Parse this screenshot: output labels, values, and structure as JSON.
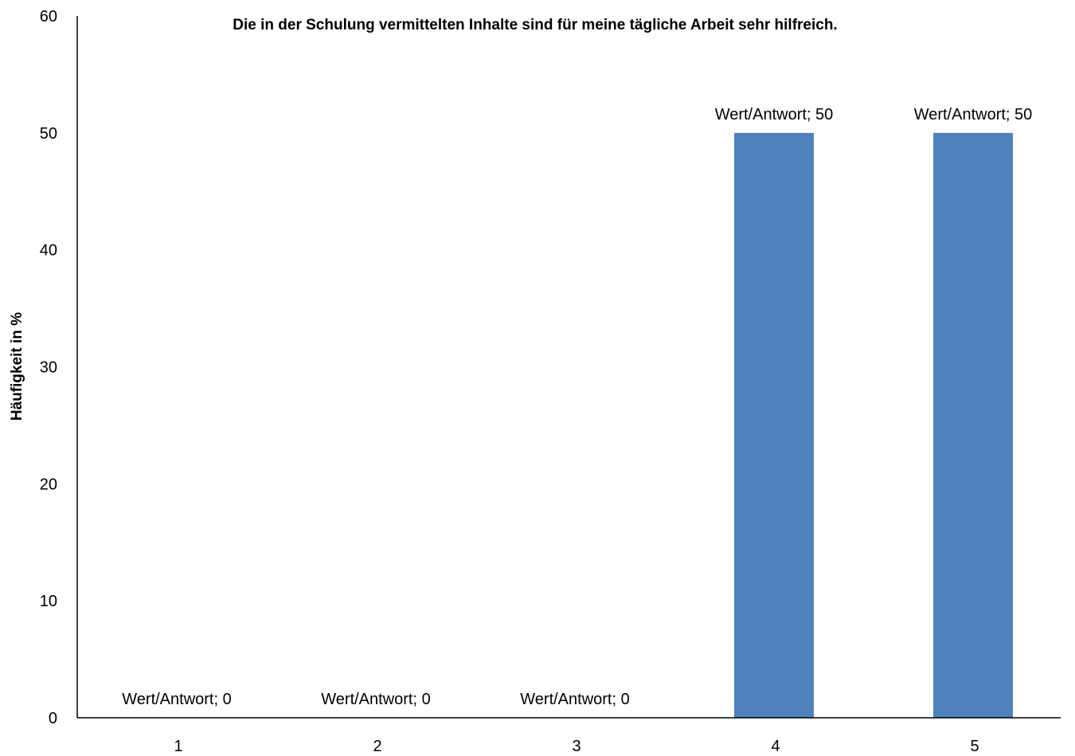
{
  "chart_data": {
    "type": "bar",
    "title": "Die in der Schulung vermittelten Inhalte sind für meine tägliche Arbeit sehr hilfreich.",
    "xlabel": "",
    "ylabel": "Häufigkeit in %",
    "categories": [
      "1",
      "2",
      "3",
      "4",
      "5"
    ],
    "values": [
      0,
      0,
      0,
      50,
      50
    ],
    "data_labels": [
      "Wert/Antwort; 0",
      "Wert/Antwort; 0",
      "Wert/Antwort; 0",
      "Wert/Antwort; 50",
      "Wert/Antwort; 50"
    ],
    "ylim": [
      0,
      60
    ],
    "yticks": [
      "0",
      "10",
      "20",
      "30",
      "40",
      "50",
      "60"
    ],
    "grid": false,
    "legend": "none",
    "bar_color": "#4f81bd",
    "axis_color": "#000000"
  }
}
